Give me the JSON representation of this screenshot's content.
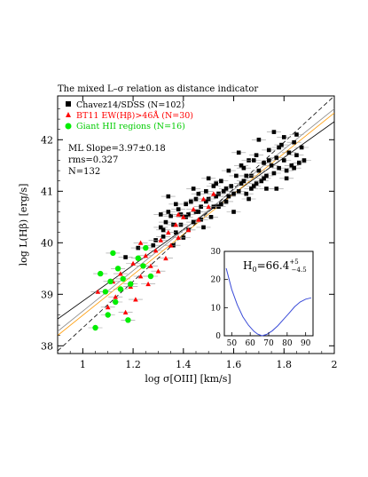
{
  "title": "The mixed L–σ relation as distance indicator",
  "chart_data": [
    {
      "type": "scatter",
      "xlabel": "log σ[OIII] [km/s]",
      "ylabel": "log L(Hβ) [erg/s]",
      "xlim": [
        0.9,
        2.0
      ],
      "ylim": [
        37.85,
        42.85
      ],
      "xticks": [
        "1",
        "1.2",
        "1.4",
        "1.6",
        "1.8",
        "2"
      ],
      "yticks": [
        "38",
        "39",
        "40",
        "41",
        "42"
      ],
      "grid": false,
      "legend_position": "top-left",
      "annotations": [
        "ML Slope=3.97±0.18",
        "rms=0.327",
        "N=132"
      ],
      "series": [
        {
          "name": "Chavez14/SDSS (N=102)",
          "color": "#000000",
          "marker": "square",
          "points": [
            [
              1.17,
              39.72
            ],
            [
              1.22,
              39.9
            ],
            [
              1.29,
              40.05
            ],
            [
              1.31,
              40.3
            ],
            [
              1.32,
              40.12
            ],
            [
              1.33,
              40.4
            ],
            [
              1.34,
              40.6
            ],
            [
              1.35,
              40.52
            ],
            [
              1.36,
              39.95
            ],
            [
              1.37,
              40.2
            ],
            [
              1.38,
              40.65
            ],
            [
              1.39,
              40.35
            ],
            [
              1.4,
              40.1
            ],
            [
              1.41,
              40.75
            ],
            [
              1.42,
              40.55
            ],
            [
              1.43,
              40.8
            ],
            [
              1.44,
              40.4
            ],
            [
              1.45,
              40.6
            ],
            [
              1.46,
              40.95
            ],
            [
              1.47,
              40.7
            ],
            [
              1.48,
              40.3
            ],
            [
              1.49,
              41.0
            ],
            [
              1.5,
              40.85
            ],
            [
              1.51,
              40.5
            ],
            [
              1.52,
              41.1
            ],
            [
              1.53,
              40.9
            ],
            [
              1.54,
              40.7
            ],
            [
              1.55,
              41.2
            ],
            [
              1.56,
              41.0
            ],
            [
              1.57,
              40.8
            ],
            [
              1.58,
              41.4
            ],
            [
              1.59,
              41.1
            ],
            [
              1.6,
              40.6
            ],
            [
              1.61,
              41.3
            ],
            [
              1.62,
              41.0
            ],
            [
              1.63,
              41.5
            ],
            [
              1.64,
              41.2
            ],
            [
              1.65,
              40.95
            ],
            [
              1.66,
              41.6
            ],
            [
              1.67,
              41.3
            ],
            [
              1.68,
              41.1
            ],
            [
              1.69,
              41.7
            ],
            [
              1.7,
              41.4
            ],
            [
              1.71,
              41.2
            ],
            [
              1.72,
              41.55
            ],
            [
              1.73,
              41.3
            ],
            [
              1.74,
              41.8
            ],
            [
              1.75,
              41.5
            ],
            [
              1.76,
              41.35
            ],
            [
              1.77,
              41.65
            ],
            [
              1.78,
              41.45
            ],
            [
              1.79,
              41.9
            ],
            [
              1.8,
              41.6
            ],
            [
              1.81,
              41.4
            ],
            [
              1.82,
              41.75
            ],
            [
              1.83,
              41.5
            ],
            [
              1.84,
              41.95
            ],
            [
              1.85,
              41.7
            ],
            [
              1.86,
              41.55
            ],
            [
              1.87,
              41.85
            ],
            [
              1.88,
              41.6
            ],
            [
              1.62,
              41.75
            ],
            [
              1.7,
              42.0
            ],
            [
              1.76,
              42.15
            ],
            [
              1.8,
              42.05
            ],
            [
              1.85,
              42.1
            ],
            [
              1.73,
              41.05
            ],
            [
              1.67,
              41.05
            ],
            [
              1.58,
              40.9
            ],
            [
              1.52,
              40.7
            ],
            [
              1.47,
              40.45
            ],
            [
              1.42,
              40.25
            ],
            [
              1.36,
              40.35
            ],
            [
              1.34,
              40.9
            ],
            [
              1.31,
              40.55
            ],
            [
              1.28,
              39.95
            ],
            [
              1.44,
              41.05
            ],
            [
              1.5,
              41.25
            ],
            [
              1.55,
              40.75
            ],
            [
              1.6,
              40.95
            ],
            [
              1.64,
              41.45
            ],
            [
              1.68,
              41.6
            ],
            [
              1.72,
              41.25
            ],
            [
              1.77,
              41.05
            ],
            [
              1.81,
              41.25
            ],
            [
              1.84,
              41.45
            ],
            [
              1.78,
              41.85
            ],
            [
              1.74,
              41.6
            ],
            [
              1.69,
              41.15
            ],
            [
              1.65,
              41.3
            ],
            [
              1.57,
              41.05
            ],
            [
              1.53,
              41.15
            ],
            [
              1.49,
              40.8
            ],
            [
              1.45,
              40.85
            ],
            [
              1.41,
              40.5
            ],
            [
              1.37,
              40.75
            ],
            [
              1.32,
              40.25
            ],
            [
              1.39,
              40.55
            ],
            [
              1.46,
              40.6
            ],
            [
              1.54,
              40.95
            ],
            [
              1.63,
              41.15
            ],
            [
              1.66,
              40.85
            ]
          ]
        },
        {
          "name": "BT11 EW(Hβ)>46Å (N=30)",
          "color": "#ff0000",
          "marker": "triangle",
          "points": [
            [
              1.06,
              39.05
            ],
            [
              1.1,
              38.75
            ],
            [
              1.12,
              39.25
            ],
            [
              1.13,
              38.95
            ],
            [
              1.15,
              39.4
            ],
            [
              1.17,
              38.65
            ],
            [
              1.19,
              39.15
            ],
            [
              1.2,
              39.6
            ],
            [
              1.21,
              38.9
            ],
            [
              1.23,
              39.35
            ],
            [
              1.25,
              39.75
            ],
            [
              1.26,
              39.2
            ],
            [
              1.27,
              39.55
            ],
            [
              1.29,
              39.85
            ],
            [
              1.3,
              39.45
            ],
            [
              1.31,
              40.05
            ],
            [
              1.33,
              39.7
            ],
            [
              1.34,
              40.2
            ],
            [
              1.35,
              39.95
            ],
            [
              1.37,
              40.35
            ],
            [
              1.38,
              40.1
            ],
            [
              1.4,
              40.5
            ],
            [
              1.42,
              40.25
            ],
            [
              1.44,
              40.65
            ],
            [
              1.46,
              40.45
            ],
            [
              1.48,
              40.85
            ],
            [
              1.5,
              40.7
            ],
            [
              1.52,
              40.95
            ],
            [
              1.23,
              40.0
            ],
            [
              1.38,
              40.55
            ]
          ]
        },
        {
          "name": "Giant HII regions (N=16)",
          "color": "#00ee00",
          "marker": "circle",
          "points": [
            [
              1.05,
              38.35
            ],
            [
              1.07,
              39.4
            ],
            [
              1.09,
              39.05
            ],
            [
              1.1,
              38.6
            ],
            [
              1.11,
              39.25
            ],
            [
              1.12,
              39.8
            ],
            [
              1.13,
              38.85
            ],
            [
              1.14,
              39.5
            ],
            [
              1.15,
              39.1
            ],
            [
              1.16,
              39.3
            ],
            [
              1.18,
              38.5
            ],
            [
              1.19,
              39.2
            ],
            [
              1.22,
              39.7
            ],
            [
              1.24,
              39.55
            ],
            [
              1.25,
              39.9
            ],
            [
              1.27,
              39.35
            ]
          ]
        }
      ],
      "fits": [
        {
          "style": "solid",
          "color": "#000000",
          "x": [
            0.9,
            2.0
          ],
          "y": [
            38.52,
            42.35
          ]
        },
        {
          "style": "solid",
          "color": "#ff9900",
          "x": [
            0.9,
            2.0
          ],
          "y": [
            38.2,
            42.52
          ]
        },
        {
          "style": "solid",
          "color": "#888888",
          "x": [
            0.9,
            2.0
          ],
          "y": [
            38.28,
            42.6
          ]
        },
        {
          "style": "dashed",
          "color": "#000000",
          "x": [
            0.9,
            2.0
          ],
          "y": [
            37.9,
            42.85
          ]
        }
      ]
    },
    {
      "type": "line",
      "title": "H0=66.4 +5 −4.5",
      "xlim": [
        46,
        94
      ],
      "ylim": [
        0,
        30
      ],
      "xticks": [
        "50",
        "60",
        "70",
        "80",
        "90"
      ],
      "yticks": [
        "0",
        "10",
        "20",
        "30"
      ],
      "series": [
        {
          "color": "#3a4bd8",
          "x": [
            47,
            50,
            53,
            56,
            59,
            62,
            64,
            66.4,
            69,
            72,
            75,
            78,
            81,
            84,
            87,
            90,
            93
          ],
          "y": [
            24.0,
            16.5,
            11.0,
            6.8,
            3.8,
            1.6,
            0.6,
            0.0,
            0.5,
            1.8,
            3.6,
            5.8,
            8.0,
            10.3,
            12.0,
            13.0,
            13.5
          ]
        }
      ]
    }
  ]
}
